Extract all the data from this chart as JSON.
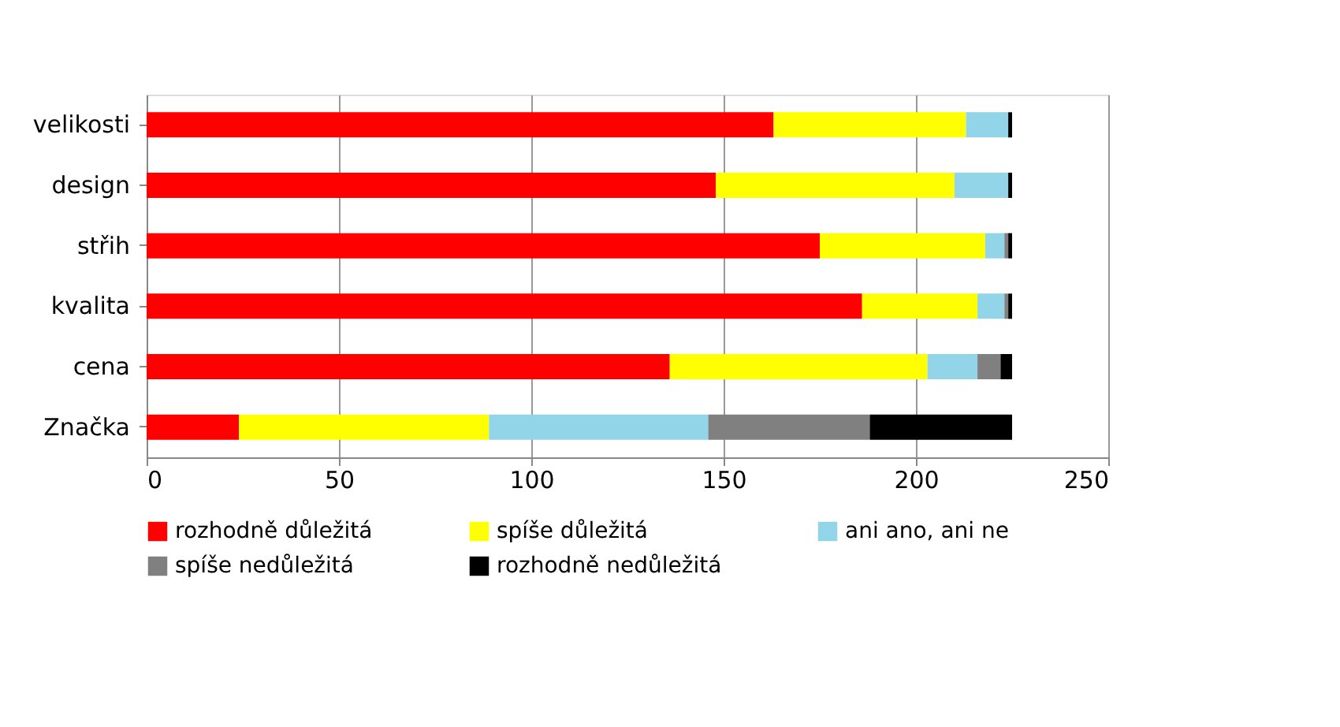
{
  "chart_data": {
    "type": "bar",
    "orientation": "horizontal",
    "stacked": true,
    "categories": [
      "velikosti",
      "design",
      "střih",
      "kvalita",
      "cena",
      "Značka"
    ],
    "series": [
      {
        "name": "rozhodně důležitá",
        "color": "#ff0000",
        "values": [
          163,
          148,
          175,
          186,
          136,
          24
        ]
      },
      {
        "name": "spíše důležitá",
        "color": "#ffff00",
        "values": [
          50,
          62,
          43,
          30,
          67,
          65
        ]
      },
      {
        "name": "ani ano, ani ne",
        "color": "#92d4e8",
        "values": [
          11,
          14,
          5,
          7,
          13,
          57
        ]
      },
      {
        "name": "spíše nedůležitá",
        "color": "#808080",
        "values": [
          0,
          0,
          1,
          1,
          6,
          42
        ]
      },
      {
        "name": "rozhodně nedůležitá",
        "color": "#000000",
        "values": [
          1,
          1,
          1,
          1,
          3,
          37
        ]
      }
    ],
    "xlim": [
      0,
      250
    ],
    "xticks": [
      0,
      50,
      100,
      150,
      200,
      250
    ],
    "grid": "x",
    "legend": "bottom"
  }
}
